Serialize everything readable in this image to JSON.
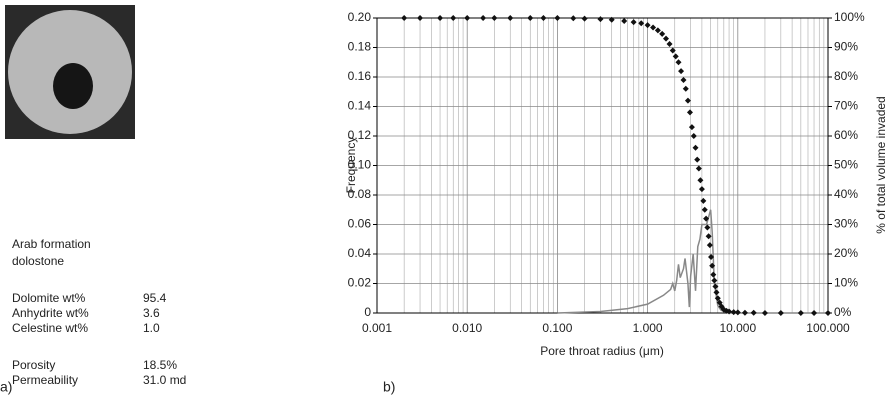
{
  "panel_a": {
    "label": "a)",
    "caption": [
      "Arab formation",
      "dolostone"
    ],
    "composition": [
      [
        "Dolomite wt%",
        "95.4"
      ],
      [
        "Anhydrite wt%",
        "3.6"
      ],
      [
        "Celestine wt%",
        "1.0"
      ]
    ],
    "properties": [
      [
        "Porosity",
        "18.5%"
      ],
      [
        "Permeability",
        "31.0 md"
      ]
    ]
  },
  "chart_data": {
    "type": "line",
    "panel_label": "b)",
    "x_label": "Pore throat radius (μm)",
    "y_label": "Frequency",
    "y2_label": "% of total volume invaded",
    "x_scale": "log",
    "grid": true,
    "xlim": [
      0.001,
      100
    ],
    "xticks": [
      0.001,
      {
        "value": 0.01,
        "label": "0.010"
      },
      {
        "value": 0.1,
        "label": "0.100"
      },
      {
        "value": 1,
        "label": "1.000"
      },
      {
        "value": 10,
        "label": "10.000"
      },
      {
        "value": 100,
        "label": "100.000"
      }
    ],
    "ylim": [
      0,
      0.2
    ],
    "yticks": [
      0,
      0.02,
      0.04,
      0.06,
      0.08,
      {
        "value": 0.1,
        "label": "0.10"
      },
      0.12,
      0.14,
      0.16,
      0.18,
      {
        "value": 0.2,
        "label": "0.20"
      }
    ],
    "y2lim": [
      0,
      100
    ],
    "y2ticks": [
      {
        "value": 0,
        "label": "0%"
      },
      {
        "value": 10,
        "label": "10%"
      },
      {
        "value": 20,
        "label": "20%"
      },
      {
        "value": 30,
        "label": "30%"
      },
      {
        "value": 40,
        "label": "40%"
      },
      {
        "value": 50,
        "label": "50%"
      },
      {
        "value": 60,
        "label": "60%"
      },
      {
        "value": 70,
        "label": "70%"
      },
      {
        "value": 80,
        "label": "80%"
      },
      {
        "value": 90,
        "label": "90%"
      },
      {
        "value": 100,
        "label": "100%"
      }
    ],
    "series": [
      {
        "color": "#888888",
        "marker": "line",
        "x": [
          0.1,
          0.3,
          0.6,
          1.0,
          1.5,
          1.8,
          1.9,
          2.0,
          2.1,
          2.2,
          2.3,
          2.5,
          2.6,
          2.8,
          2.9,
          3.0,
          3.2,
          3.4,
          3.6,
          3.8,
          4.0,
          4.5,
          5.0,
          5.2,
          5.5,
          6.0,
          6.5,
          7,
          8,
          10,
          20,
          100
        ],
        "values": [
          0,
          0.001,
          0.003,
          0.006,
          0.012,
          0.016,
          0.02,
          0.015,
          0.022,
          0.033,
          0.024,
          0.03,
          0.037,
          0.02,
          0.004,
          0.025,
          0.04,
          0.015,
          0.045,
          0.05,
          0.06,
          0.06,
          0.07,
          0.055,
          0.02,
          0.005,
          0.002,
          0.001,
          0,
          0,
          0,
          0
        ]
      },
      {
        "color": "#111111",
        "marker": "diamond",
        "axis": "y2",
        "x": [
          0.002,
          0.003,
          0.005,
          0.007,
          0.01,
          0.015,
          0.02,
          0.03,
          0.05,
          0.07,
          0.1,
          0.15,
          0.2,
          0.3,
          0.4,
          0.55,
          0.7,
          0.85,
          1.0,
          1.15,
          1.3,
          1.45,
          1.6,
          1.75,
          1.9,
          2.05,
          2.2,
          2.35,
          2.5,
          2.65,
          2.8,
          2.95,
          3.1,
          3.25,
          3.4,
          3.55,
          3.7,
          3.85,
          4.0,
          4.15,
          4.3,
          4.45,
          4.6,
          4.75,
          4.9,
          5.05,
          5.2,
          5.35,
          5.5,
          5.65,
          5.8,
          6.0,
          6.3,
          6.6,
          7.0,
          7.5,
          8,
          9,
          10,
          12,
          15,
          20,
          30,
          50,
          70,
          100
        ],
        "values": [
          100,
          100,
          100,
          100,
          100,
          100,
          100,
          100,
          100,
          100,
          100,
          99.9,
          99.8,
          99.6,
          99.4,
          99,
          98.6,
          98.2,
          97.6,
          96.8,
          95.8,
          94.6,
          93,
          91.2,
          89,
          87,
          85,
          82,
          79,
          76,
          72,
          68,
          63,
          60,
          56,
          52,
          49,
          45,
          42,
          38,
          35,
          32,
          29,
          26,
          23,
          19,
          16,
          13,
          11,
          9,
          7,
          5,
          3.5,
          2.2,
          1.2,
          0.7,
          0.5,
          0.3,
          0.2,
          0.1,
          0.1,
          0,
          0,
          0,
          0,
          0
        ]
      }
    ]
  }
}
